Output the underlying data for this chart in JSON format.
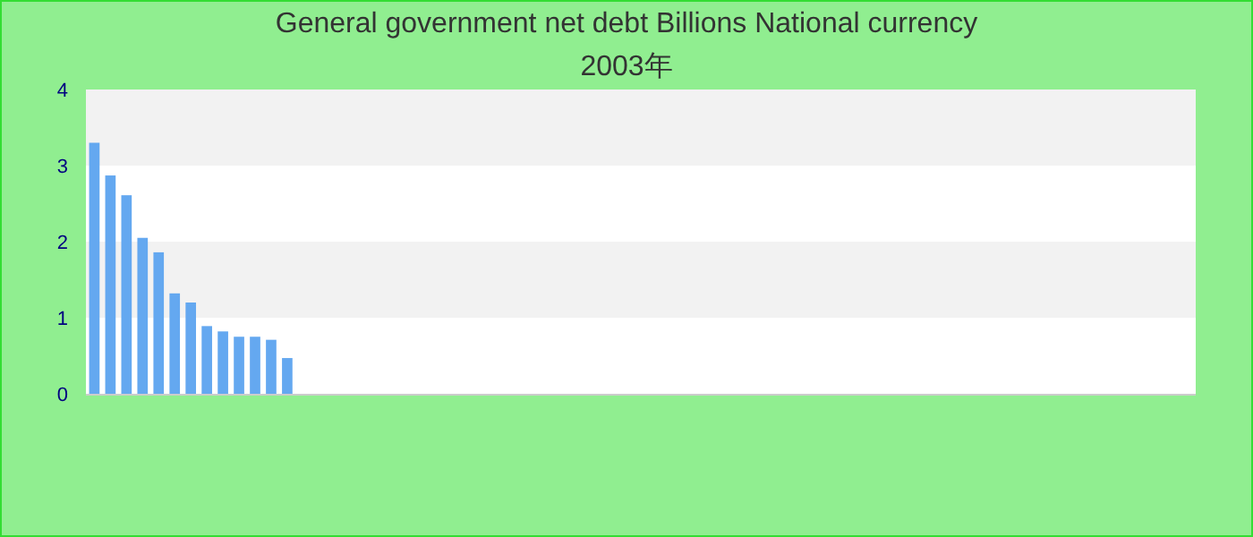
{
  "chart_data": {
    "type": "bar",
    "title": "General government net debt Billions National currency",
    "subtitle": "2003年",
    "categories": [
      null,
      null,
      null,
      null,
      null,
      null,
      null,
      null,
      null,
      null,
      null,
      null,
      null,
      null,
      null,
      null,
      null,
      null,
      null,
      null,
      null,
      null,
      null,
      null,
      null,
      null,
      null,
      null,
      null,
      null,
      null,
      null,
      null,
      null,
      null,
      null,
      null,
      null,
      null,
      null,
      null,
      null,
      null,
      null,
      null,
      null,
      null,
      null,
      null,
      null,
      null,
      null,
      null,
      null,
      null,
      null,
      null,
      null,
      null,
      null,
      null,
      null,
      null,
      null,
      null,
      null,
      null,
      null,
      null
    ],
    "values": [
      3.3,
      2.87,
      2.61,
      2.05,
      1.86,
      1.32,
      1.2,
      0.89,
      0.82,
      0.75,
      0.75,
      0.71,
      0.47,
      null,
      null,
      null,
      null,
      null,
      null,
      null,
      null,
      null,
      null,
      null,
      null,
      null,
      null,
      null,
      null,
      null,
      null,
      null,
      null,
      null,
      null,
      null,
      null,
      null,
      null,
      null,
      null,
      null,
      null,
      null,
      null,
      null,
      null,
      null,
      null,
      null,
      null,
      null,
      null,
      null,
      null,
      null,
      null,
      null,
      null,
      null,
      null,
      null,
      null,
      null,
      null,
      null,
      null,
      null,
      null
    ],
    "color": "#64a8f0",
    "ylim": [
      0,
      4
    ],
    "yticks": [
      0,
      1,
      2,
      3,
      4
    ],
    "bands": [
      {
        "axis": "y",
        "from": 1,
        "to": 2,
        "color": "#f2f2f2"
      },
      {
        "axis": "y",
        "from": 3,
        "to": 4,
        "color": "#f2f2f2"
      }
    ]
  }
}
